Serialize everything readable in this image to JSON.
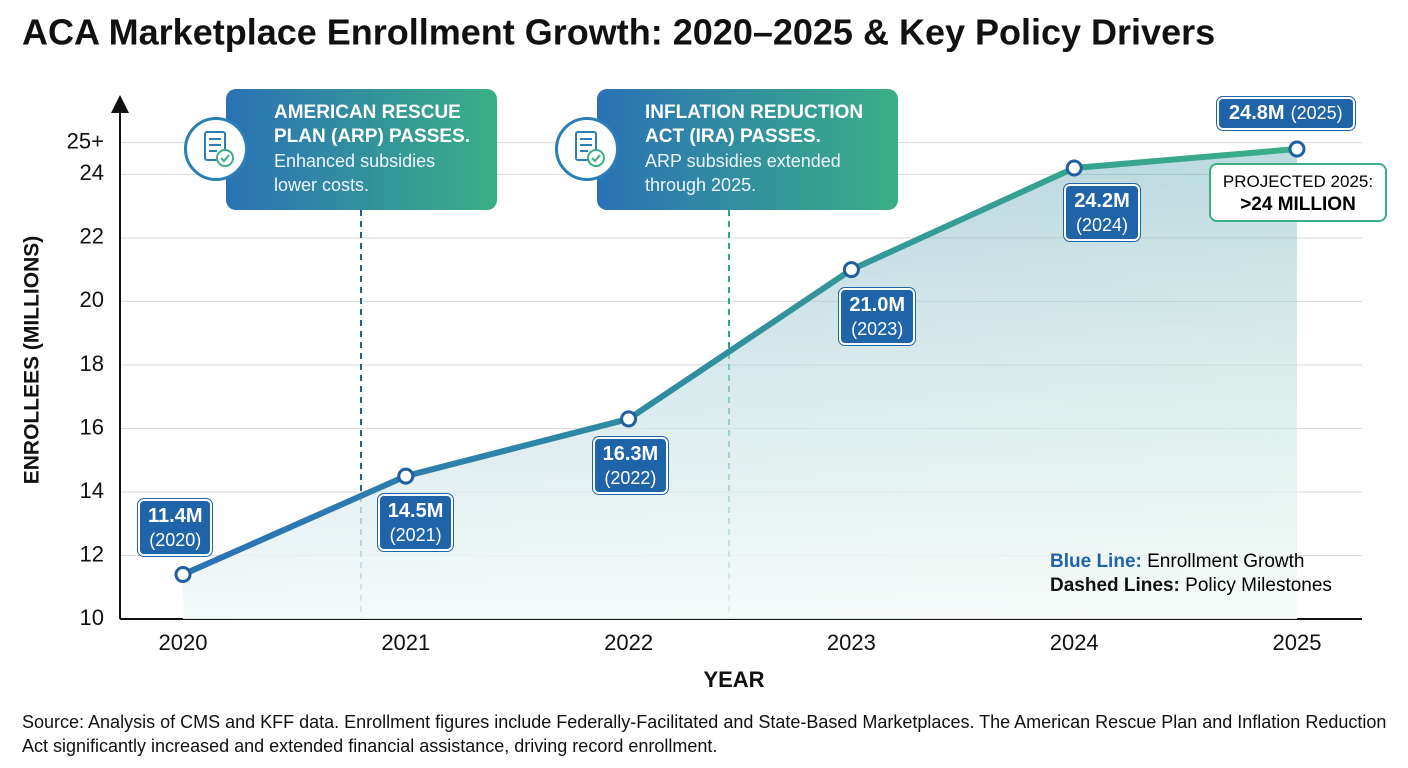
{
  "chart_data": {
    "type": "line",
    "title": "ACA Marketplace Enrollment Growth: 2020–2025 & Key Policy Drivers",
    "x_label": "YEAR",
    "y_label": "ENROLLEES (MILLIONS)",
    "categories": [
      "2020",
      "2021",
      "2022",
      "2023",
      "2024",
      "2025"
    ],
    "series": [
      {
        "name": "Enrollment Growth",
        "color": "#2a72b5",
        "color2": "#3aaf86",
        "values": [
          11.4,
          14.5,
          16.3,
          21.0,
          24.2,
          24.8
        ],
        "value_labels": [
          "11.4M",
          "14.5M",
          "16.3M",
          "21.0M",
          "24.2M",
          "24.8M"
        ],
        "label_notes": [
          "(2020)",
          "(2021)",
          "(2022)",
          "(2023)",
          "(2024)",
          "(2025)"
        ]
      }
    ],
    "ylim": [
      10,
      26.5
    ],
    "yticks": [
      10,
      12,
      14,
      16,
      18,
      20,
      22,
      24,
      {
        "value": 25,
        "label": "25+"
      }
    ],
    "grid": true,
    "annotations": [
      {
        "title": "AMERICAN RESCUE PLAN (ARP) PASSES.",
        "text": "Enhanced subsidies lower costs.",
        "color": "#1f5f9c"
      },
      {
        "title": "INFLATION REDUCTION ACT (IRA) PASSES.",
        "text": "ARP subsidies extended through 2025.",
        "color": "#2fa77a"
      }
    ],
    "projection": {
      "label": "PROJECTED 2025:",
      "value": ">24 MILLION"
    },
    "legend": [
      {
        "key": "Blue Line:",
        "text": "Enrollment Growth"
      },
      {
        "key": "Dashed Lines:",
        "text": "Policy Milestones"
      }
    ],
    "source": "Source: Analysis of CMS and KFF data. Enrollment figures include Federally-Facilitated and State-Based Marketplaces. The American Rescue Plan and Inflation Reduction Act significantly increased and extended financial assistance, driving record enrollment."
  }
}
